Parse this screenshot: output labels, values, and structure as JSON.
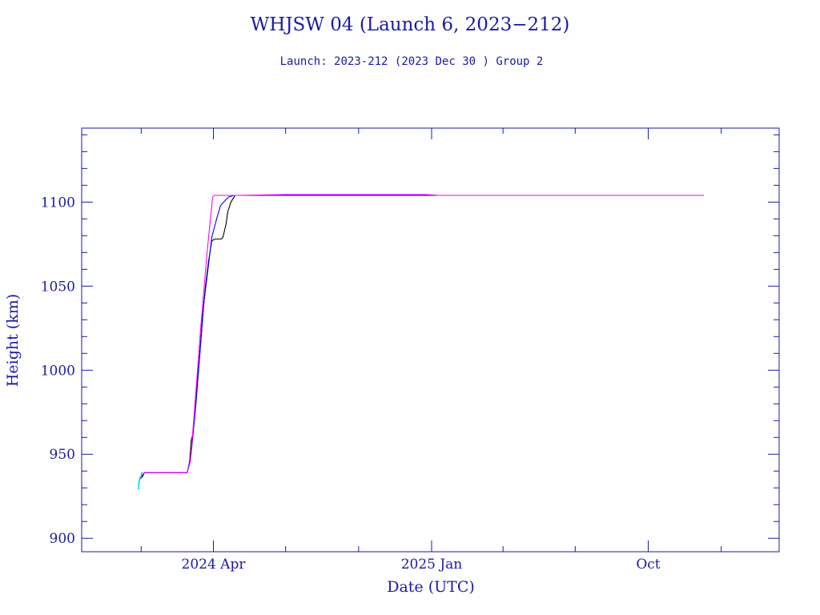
{
  "chart_data": {
    "type": "line",
    "title": "WHJSW 04 (Launch 6, 2023−212)",
    "subtitle": "Launch: 2023-212  (2023 Dec 30 )  Group 2",
    "xlabel": "Date (UTC)",
    "ylabel": "Height (km)",
    "ylim": [
      892,
      1144
    ],
    "xlim": [
      "2023-10-18",
      "2026-03-15"
    ],
    "grid": false,
    "x_ticks": [
      {
        "date": "2024-04-01",
        "label": "2024 Apr"
      },
      {
        "date": "2025-01-01",
        "label": "2025 Jan"
      },
      {
        "date": "2025-10-01",
        "label": "Oct"
      }
    ],
    "y_ticks": [
      900,
      950,
      1000,
      1050,
      1100
    ],
    "colors": {
      "axis": "#1a1aa6",
      "text": "#1a1aa6",
      "apogee": "#000000",
      "perigee": "#0000ff",
      "mean": "#ff00ff",
      "early": "#00ccff"
    },
    "series": [
      {
        "key": "apogee",
        "x": [
          "2023-12-30",
          "2024-01-01",
          "2024-01-03",
          "2024-01-05",
          "2024-02-28",
          "2024-03-02",
          "2024-03-04",
          "2024-03-06",
          "2024-03-10",
          "2024-03-14",
          "2024-03-18",
          "2024-03-22",
          "2024-03-26",
          "2024-03-30",
          "2024-04-03",
          "2024-04-05",
          "2024-04-07",
          "2024-04-11",
          "2024-04-13",
          "2024-04-17",
          "2024-04-19",
          "2024-04-23",
          "2024-04-27",
          "2024-04-28",
          "2024-05-04",
          "2024-12-28",
          "2025-03-01",
          "2025-06-01",
          "2025-09-01",
          "2025-12-10"
        ],
        "y": [
          935,
          936,
          937,
          939,
          939,
          945,
          958,
          962,
          985,
          1005,
          1030,
          1050,
          1065,
          1077,
          1078,
          1078,
          1078,
          1078,
          1079,
          1087,
          1094,
          1100,
          1103,
          1104,
          1104,
          1104,
          1104,
          1104,
          1104,
          1104
        ]
      },
      {
        "key": "perigee",
        "x": [
          "2023-12-30",
          "2024-01-02",
          "2024-01-05",
          "2024-02-28",
          "2024-03-04",
          "2024-03-10",
          "2024-03-20",
          "2024-03-30",
          "2024-04-05",
          "2024-04-10",
          "2024-04-20",
          "2024-04-27",
          "2024-05-04",
          "2024-12-28",
          "2025-03-01",
          "2025-06-01",
          "2025-09-01",
          "2025-12-10"
        ],
        "y": [
          936,
          937,
          939,
          939,
          950,
          980,
          1040,
          1079,
          1090,
          1098,
          1103,
          1104,
          1104,
          1104,
          1104,
          1104,
          1104,
          1104
        ]
      },
      {
        "key": "mean",
        "x": [
          "2023-12-30",
          "2024-01-03",
          "2024-01-06",
          "2024-02-28",
          "2024-03-03",
          "2024-03-08",
          "2024-03-16",
          "2024-03-24",
          "2024-03-31",
          "2024-04-02",
          "2024-04-11",
          "2024-05-01",
          "2024-07-01",
          "2024-09-01",
          "2024-11-01",
          "2024-12-25",
          "2025-01-10",
          "2025-04-01",
          "2025-07-01",
          "2025-10-01",
          "2025-12-10"
        ],
        "y": [
          936,
          938,
          939,
          939,
          946,
          975,
          1025,
          1070,
          1103,
          1104,
          1104,
          1104,
          1104.5,
          1104.5,
          1104.5,
          1104.5,
          1104,
          1104,
          1104,
          1104,
          1104
        ]
      },
      {
        "key": "early",
        "x": [
          "2023-12-29",
          "2023-12-29",
          "2023-12-30",
          "2023-12-31",
          "2024-01-01",
          "2024-01-02",
          "2024-01-03"
        ],
        "y": [
          929,
          933,
          935,
          936,
          937,
          939,
          939
        ]
      }
    ]
  }
}
